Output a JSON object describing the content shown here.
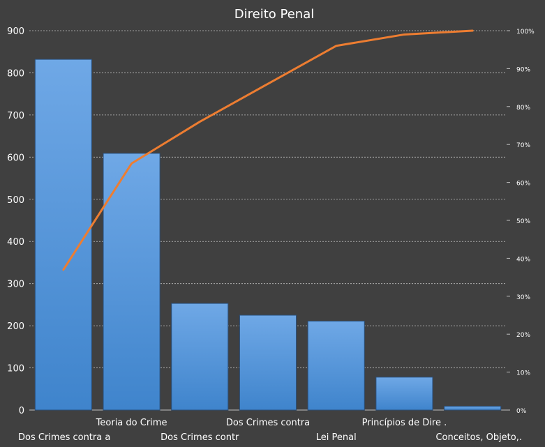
{
  "chart_data": {
    "type": "bar",
    "title": "Direito Penal",
    "categories": [
      "Dos Crimes contra  a",
      "Teoria do Crime",
      "Dos Crimes contr",
      "Dos Crimes contra",
      "Lei Penal",
      "Princípios de Dire .",
      "Conceitos, Objeto,."
    ],
    "series": [
      {
        "type": "bar",
        "values": [
          832,
          609,
          253,
          225,
          211,
          78,
          9
        ]
      },
      {
        "type": "line",
        "axis": "right",
        "values": [
          0.37,
          0.65,
          0.76,
          0.86,
          0.96,
          0.99,
          1.0
        ]
      }
    ],
    "ylim": [
      0,
      900
    ],
    "y_ticks": [
      0,
      100,
      200,
      300,
      400,
      500,
      600,
      700,
      800,
      900
    ],
    "y2lim": [
      0,
      1
    ],
    "y2_ticks": [
      "0%",
      "10%",
      "20%",
      "30%",
      "40%",
      "50%",
      "60%",
      "70%",
      "80%",
      "90%",
      "100%"
    ],
    "grid": true,
    "legend": "none",
    "colors": {
      "background": "#404040",
      "bar": "#4a90d9",
      "bar_edge": "#2a4f7a",
      "line": "#ed7d31",
      "grid": "#bfbfbf",
      "text": "#ffffff"
    }
  }
}
